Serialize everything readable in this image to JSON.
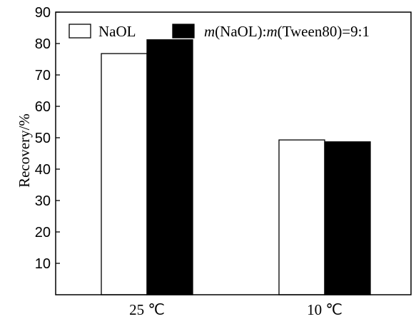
{
  "chart_data": {
    "type": "bar",
    "categories": [
      "25 ℃",
      "10 ℃"
    ],
    "series": [
      {
        "name": "NaOL",
        "values": [
          76.8,
          49.3
        ],
        "color": "#ffffff"
      },
      {
        "name": "m(NaOL):m(Tween80)=9:1",
        "values": [
          81.2,
          48.7
        ],
        "color": "#000000"
      }
    ],
    "legend_labels": [
      {
        "parts": [
          {
            "text": "NaOL",
            "italic": false
          }
        ]
      },
      {
        "parts": [
          {
            "text": "m",
            "italic": true
          },
          {
            "text": "(NaOL):",
            "italic": false
          },
          {
            "text": "m",
            "italic": true
          },
          {
            "text": "(Tween80)=9:1",
            "italic": false
          }
        ]
      }
    ],
    "xlabel": "",
    "ylabel": "Recovery/%",
    "ylim": [
      0,
      90
    ],
    "yticks": [
      10,
      20,
      30,
      40,
      50,
      60,
      70,
      80,
      90
    ],
    "grid": false,
    "legend_position": "top"
  }
}
